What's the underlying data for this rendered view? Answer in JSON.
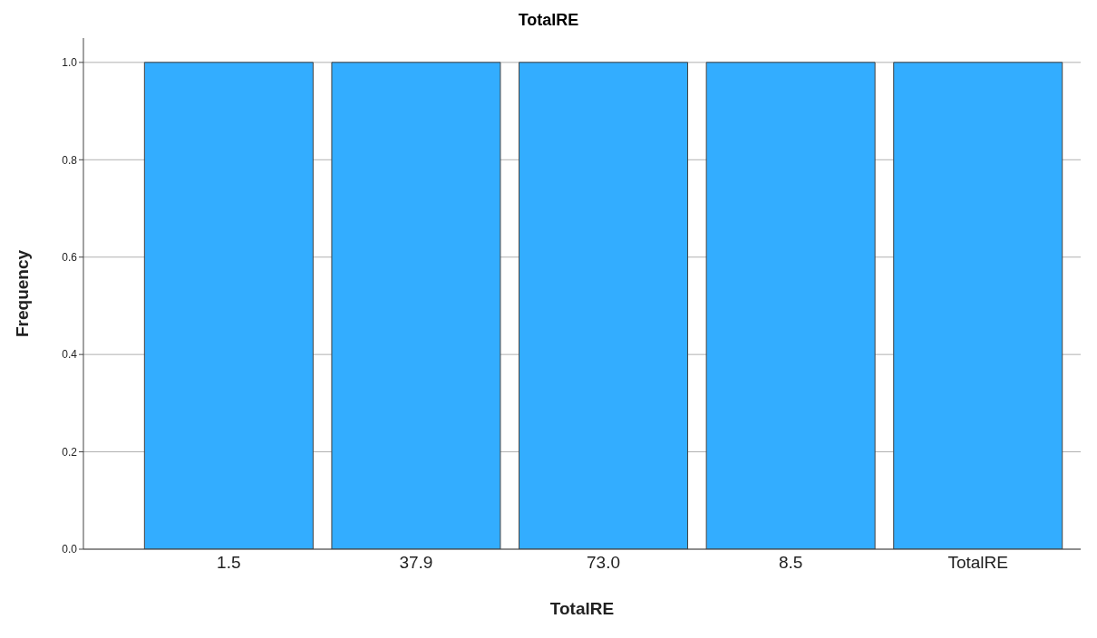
{
  "chart_data": {
    "type": "bar",
    "title": "TotalRE",
    "xlabel": "TotalRE",
    "ylabel": "Frequency",
    "categories": [
      "1.5",
      "37.9",
      "73.0",
      "8.5",
      "TotalRE"
    ],
    "values": [
      1,
      1,
      1,
      1,
      1
    ],
    "color": "#33adff",
    "ylim": [
      0,
      1.05
    ],
    "yticks": [
      {
        "value": 0,
        "label": "0.0"
      },
      {
        "value": 0.2,
        "label": "0.2"
      },
      {
        "value": 0.4,
        "label": "0.4"
      },
      {
        "value": 0.6,
        "label": "0.6"
      },
      {
        "value": 0.8,
        "label": "0.8"
      },
      {
        "value": 1,
        "label": "1.0"
      }
    ],
    "grid": "y"
  }
}
